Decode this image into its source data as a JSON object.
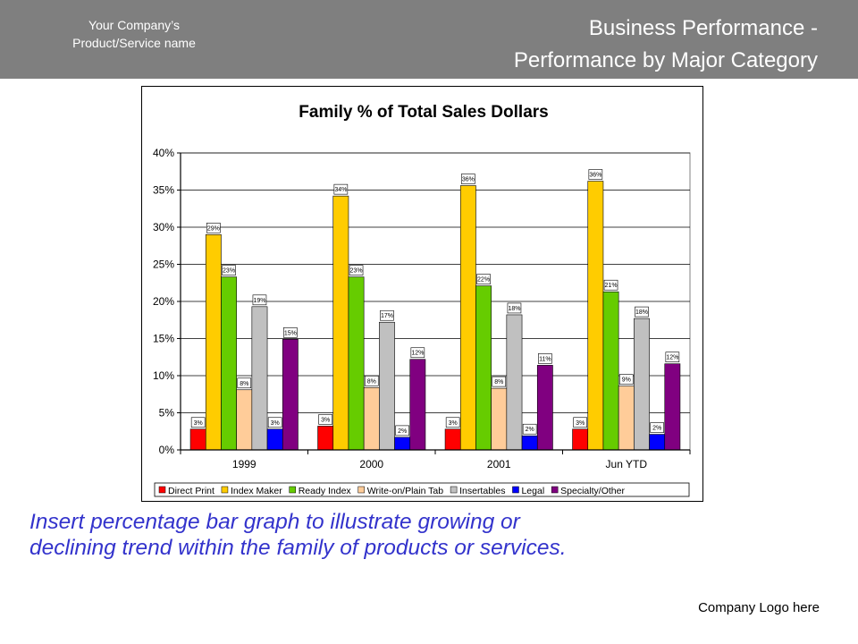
{
  "header": {
    "company_line1": "Your Company’s",
    "company_line2": "Product/Service name",
    "title_line1": "Business Performance -",
    "title_line2": "Performance by Major Category"
  },
  "chart_data": {
    "type": "bar",
    "title": "Family % of Total Sales Dollars",
    "categories": [
      "1999",
      "2000",
      "2001",
      "Jun YTD"
    ],
    "ylim": [
      0,
      0.4
    ],
    "yticks": [
      "0%",
      "5%",
      "10%",
      "15%",
      "20%",
      "25%",
      "30%",
      "35%",
      "40%"
    ],
    "grid": true,
    "legend_position": "bottom",
    "series": [
      {
        "name": "Direct Print",
        "color": "#ff0000",
        "values": [
          0.028,
          0.032,
          0.028,
          0.028
        ],
        "labels": [
          "3%",
          "3%",
          "3%",
          "3%"
        ]
      },
      {
        "name": "Index Maker",
        "color": "#ffcc00",
        "values": [
          0.29,
          0.342,
          0.356,
          0.362
        ],
        "labels": [
          "29%",
          "34%",
          "36%",
          "36%"
        ]
      },
      {
        "name": "Ready Index",
        "color": "#66cc00",
        "values": [
          0.233,
          0.233,
          0.221,
          0.213
        ],
        "labels": [
          "23%",
          "23%",
          "22%",
          "21%"
        ]
      },
      {
        "name": "Write-on/Plain Tab",
        "color": "#ffcc99",
        "values": [
          0.081,
          0.084,
          0.083,
          0.086
        ],
        "labels": [
          "8%",
          "8%",
          "8%",
          "9%"
        ]
      },
      {
        "name": "Insertables",
        "color": "#c0c0c0",
        "values": [
          0.193,
          0.172,
          0.182,
          0.177
        ],
        "labels": [
          "19%",
          "17%",
          "18%",
          "18%"
        ]
      },
      {
        "name": "Legal",
        "color": "#0000ff",
        "values": [
          0.028,
          0.017,
          0.019,
          0.021
        ],
        "labels": [
          "3%",
          "2%",
          "2%",
          "2%"
        ]
      },
      {
        "name": "Specialty/Other",
        "color": "#800080",
        "values": [
          0.149,
          0.122,
          0.114,
          0.116
        ],
        "labels": [
          "15%",
          "12%",
          "11%",
          "12%"
        ]
      }
    ]
  },
  "caption": {
    "line1": "Insert percentage bar graph to illustrate growing or",
    "line2": "declining trend within the family of products or services."
  },
  "footer": {
    "logo_text": "Company Logo here"
  }
}
